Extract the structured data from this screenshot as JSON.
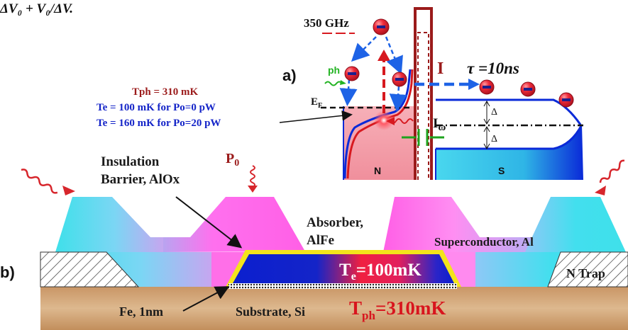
{
  "header_fragment": "ΔV₀ + V₀/ΔV.",
  "panel_a": {
    "label": "a)",
    "frequency": "350 GHz",
    "phonon": "ph",
    "fermi_prefix": "E",
    "fermi_sub": "F",
    "current": "I",
    "omega_prefix": "I",
    "omega_sub": "ω",
    "tau": "τ =10ns",
    "delta_upper": "Δ",
    "delta_lower": "Δ",
    "n_region": "N",
    "s_region": "S",
    "tph": "Tph = 310 mK",
    "te_zero": "Te = 100 mK for Po=0 pW",
    "te_twenty": "Te = 160 mK for Po=20 pW"
  },
  "panel_b": {
    "label": "b)",
    "insulation_line1": "Insulation",
    "insulation_line2": "Barrier, AlOx",
    "p0_prefix": "P",
    "p0_sub": "0",
    "absorber_line1": "Absorber,",
    "absorber_line2": "AlFe",
    "superconductor": "Superconductor, Al",
    "te_prefix": "T",
    "te_sub": "e",
    "te_value": "=100mK",
    "n_trap": "N Trap",
    "fe_label": "Fe, 1nm",
    "substrate": "Substrate, Si",
    "tph_prefix": "T",
    "tph_sub": "ph",
    "tph_value": "=310mK"
  },
  "colors": {
    "electron": "#e8192c",
    "normal_metal": "#f4a6ae",
    "superconductor": "#3fd8ee",
    "band_blue": "#0a2ad8",
    "dark_red": "#9b1b1b",
    "magenta": "#ff6ef0",
    "substrate": "#d2a77a",
    "absorber_blue": "#0b1fcf",
    "barrier_yellow": "#f3e41b"
  }
}
